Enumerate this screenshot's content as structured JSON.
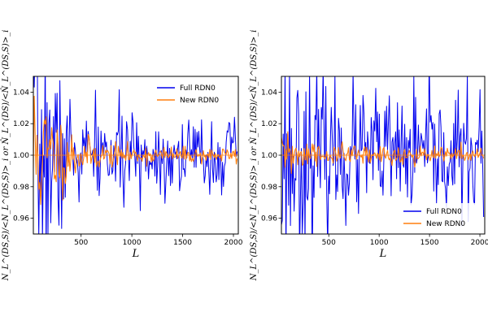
{
  "chart_data": [
    {
      "type": "line",
      "panel": "left",
      "xlabel": "L",
      "ylabel": "N_L^(DS,S)/<N_L^(DS,S)>_i or N̂_L^(DS)/<N̂_L^(DS,S)>_i",
      "xlim": [
        30,
        2048
      ],
      "ylim": [
        0.95,
        1.05
      ],
      "xticks": [
        "500",
        "1000",
        "1500",
        "2000"
      ],
      "yticks": [
        "0.96",
        "0.98",
        "1.00",
        "1.02",
        "1.04"
      ],
      "legend_position": "top-right",
      "reference_line": 1.0,
      "series": [
        {
          "name": "Full RDN0",
          "color": "#0000ee",
          "x_start": 30,
          "x_step": 9,
          "points": 224,
          "amplitude_early": 0.05,
          "amplitude_late": 0.012,
          "seed": 7
        },
        {
          "name": "New RDN0",
          "color": "#ff7f0e",
          "x_start": 30,
          "x_step": 9,
          "points": 224,
          "amplitude_early": 0.03,
          "amplitude_late": 0.0025,
          "seed": 11
        }
      ]
    },
    {
      "type": "line",
      "panel": "right",
      "xlabel": "L",
      "ylabel": "N_L^(DS,S)/<N_L^(DS,S)>_i or N̂_L^(DS)/<N̂_L^(DS,S)>_i",
      "xlim": [
        30,
        2048
      ],
      "ylim": [
        0.95,
        1.05
      ],
      "xticks": [
        "500",
        "1000",
        "1500",
        "2000"
      ],
      "yticks": [
        "0.96",
        "0.98",
        "1.00",
        "1.02",
        "1.04"
      ],
      "legend_position": "bottom-right",
      "reference_line": 1.0,
      "series": [
        {
          "name": "Full RDN0",
          "color": "#0000ee",
          "x_start": 30,
          "x_step": 9,
          "points": 224,
          "amplitude_early": 0.04,
          "amplitude_late": 0.02,
          "seed": 23
        },
        {
          "name": "New RDN0",
          "color": "#ff7f0e",
          "x_start": 30,
          "x_step": 9,
          "points": 224,
          "amplitude_early": 0.008,
          "amplitude_late": 0.003,
          "seed": 31
        }
      ]
    }
  ]
}
